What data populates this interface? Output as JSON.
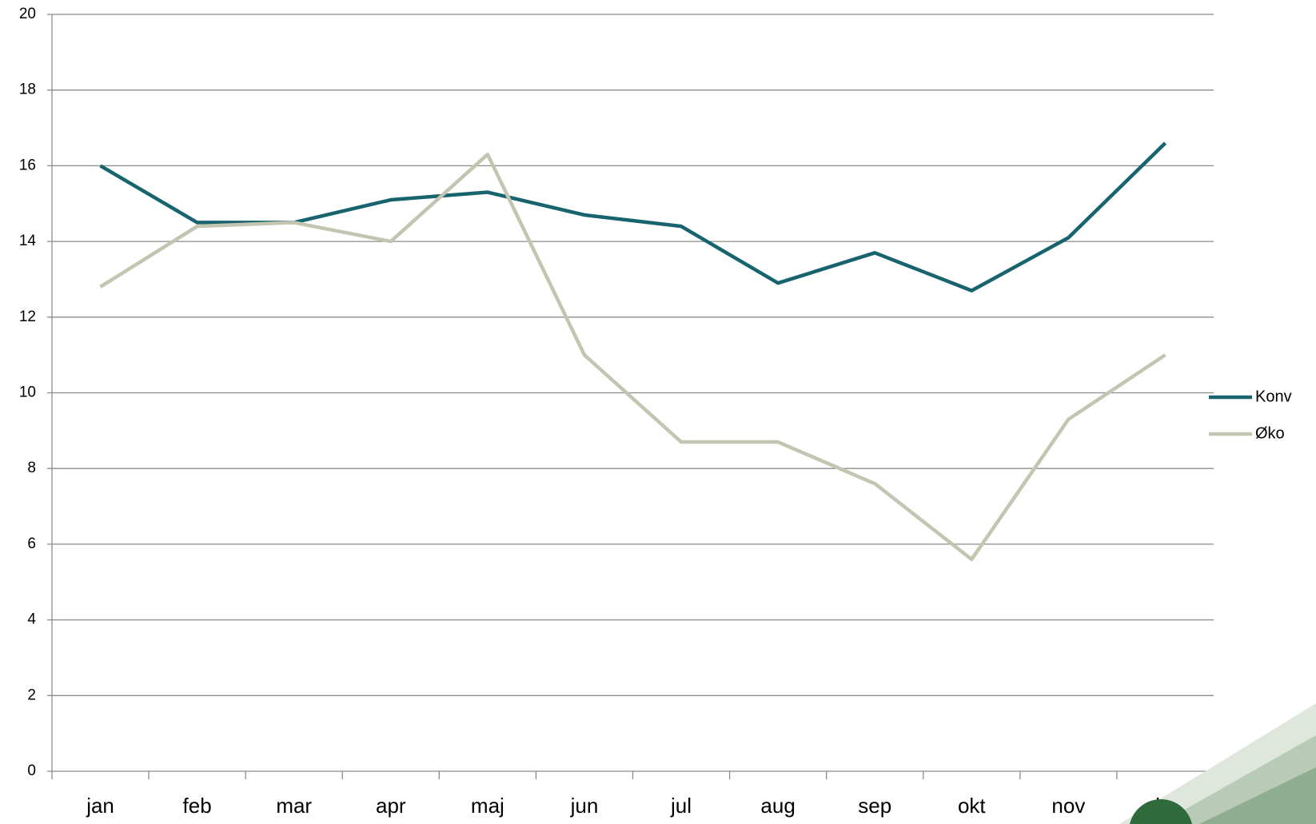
{
  "chart_data": {
    "type": "line",
    "categories": [
      "jan",
      "feb",
      "mar",
      "apr",
      "maj",
      "jun",
      "jul",
      "aug",
      "sep",
      "okt",
      "nov",
      "dec"
    ],
    "series": [
      {
        "name": "Konv",
        "color": "#17636e",
        "values": [
          16,
          14.5,
          14.5,
          15.1,
          15.3,
          14.7,
          14.4,
          12.9,
          13.7,
          12.7,
          14.1,
          16.6
        ]
      },
      {
        "name": "Øko",
        "color": "#c4c5b1",
        "values": [
          12.8,
          14.4,
          14.5,
          14.0,
          16.3,
          11.0,
          8.7,
          8.7,
          7.6,
          5.6,
          9.3,
          11.0
        ]
      }
    ],
    "ylim": [
      0,
      20
    ],
    "yticks": [
      0,
      2,
      4,
      6,
      8,
      10,
      12,
      14,
      16,
      18,
      20
    ],
    "grid": true,
    "legend": "right"
  }
}
